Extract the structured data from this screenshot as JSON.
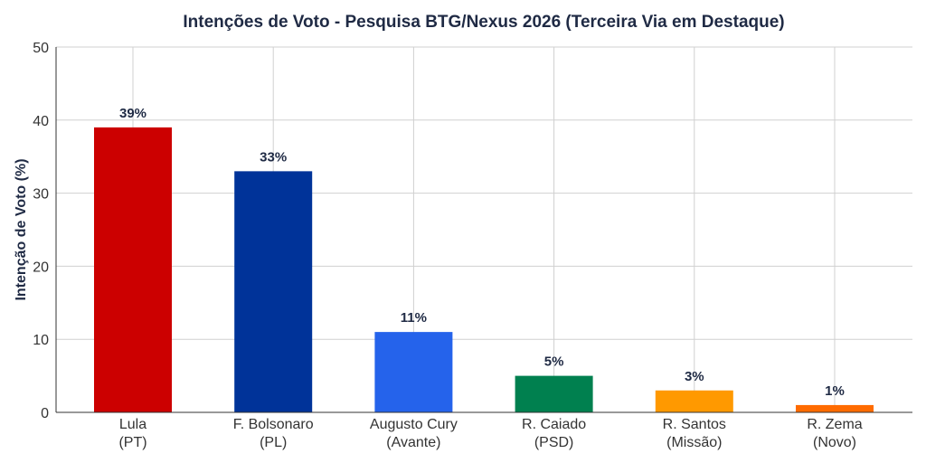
{
  "chart_data": {
    "type": "bar",
    "title": "Intenções de Voto - Pesquisa BTG/Nexus 2026 (Terceira Via em Destaque)",
    "xlabel": "",
    "ylabel": "Intenção de Voto (%)",
    "ylim": [
      0,
      50
    ],
    "yticks": [
      0,
      10,
      20,
      30,
      40,
      50
    ],
    "grid": true,
    "categories": [
      [
        "Lula",
        "(PT)"
      ],
      [
        "F. Bolsonaro",
        "(PL)"
      ],
      [
        "Augusto Cury",
        "(Avante)"
      ],
      [
        "R. Caiado",
        "(PSD)"
      ],
      [
        "R. Santos",
        "(Missão)"
      ],
      [
        "R. Zema",
        "(Novo)"
      ]
    ],
    "values": [
      39,
      33,
      11,
      5,
      3,
      1
    ],
    "data_labels": [
      "39%",
      "33%",
      "11%",
      "5%",
      "3%",
      "1%"
    ],
    "colors": [
      "#cc0000",
      "#003399",
      "#2563eb",
      "#00804f",
      "#ff9900",
      "#ff6b00"
    ]
  }
}
